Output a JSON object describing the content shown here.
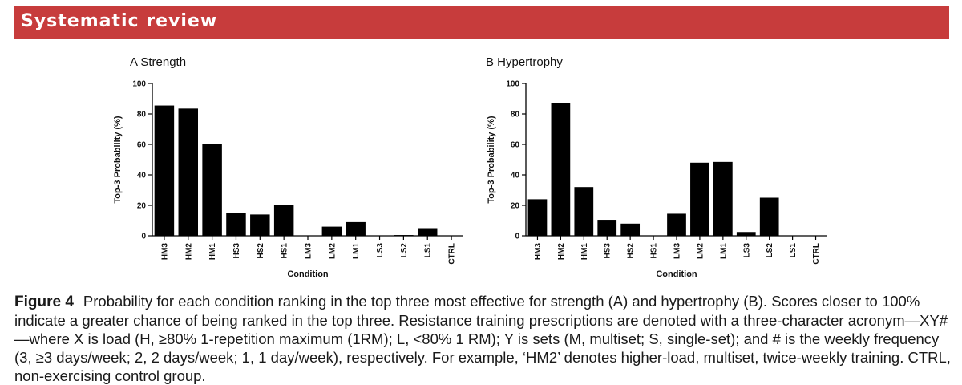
{
  "header": {
    "title": "Systematic review"
  },
  "colors": {
    "banner": "#c73c3c",
    "bars": "#000000"
  },
  "chart_data": [
    {
      "type": "bar",
      "title": "A  Strength",
      "xlabel": "Condition",
      "ylabel": "Top-3 Probability  (%)",
      "ylim": [
        0,
        100
      ],
      "yticks": [
        "0",
        "20",
        "40",
        "60",
        "80",
        "100"
      ],
      "categories": [
        "HM3",
        "HM2",
        "HM1",
        "HS3",
        "HS2",
        "HS1",
        "LM3",
        "LM2",
        "LM1",
        "LS3",
        "LS2",
        "LS1",
        "CTRL"
      ],
      "values": [
        85.5,
        83.5,
        60.5,
        15,
        14,
        20.5,
        0,
        6,
        9,
        0,
        0.5,
        5,
        0
      ]
    },
    {
      "type": "bar",
      "title": "B  Hypertrophy",
      "xlabel": "Condition",
      "ylabel": "Top-3 Probability  (%)",
      "ylim": [
        0,
        100
      ],
      "yticks": [
        "0",
        "20",
        "40",
        "60",
        "80",
        "100"
      ],
      "categories": [
        "HM3",
        "HM2",
        "HM1",
        "HS3",
        "HS2",
        "HS1",
        "LM3",
        "LM2",
        "LM1",
        "LS3",
        "LS2",
        "LS1",
        "CTRL"
      ],
      "values": [
        24,
        87,
        32,
        10.5,
        8,
        0,
        14.5,
        48,
        48.5,
        2.5,
        25,
        0,
        0
      ]
    }
  ],
  "caption": {
    "label": "Figure 4",
    "text": "Probability for each condition ranking in the top three most effective for strength (A) and hypertrophy (B). Scores closer to 100% indicate a greater chance of being ranked in the top three. Resistance training prescriptions are denoted with a three-character acronym—XY#—where X is load (H, ≥80% 1-repetition maximum (1RM); L, <80% 1 RM); Y is sets (M, multiset; S, single-set); and # is the weekly frequency (3, ≥3 days/week; 2, 2 days/week; 1, 1 day/week), respectively. For example, ‘HM2’ denotes higher-load, multiset, twice-weekly training. CTRL, non-exercising control group."
  }
}
